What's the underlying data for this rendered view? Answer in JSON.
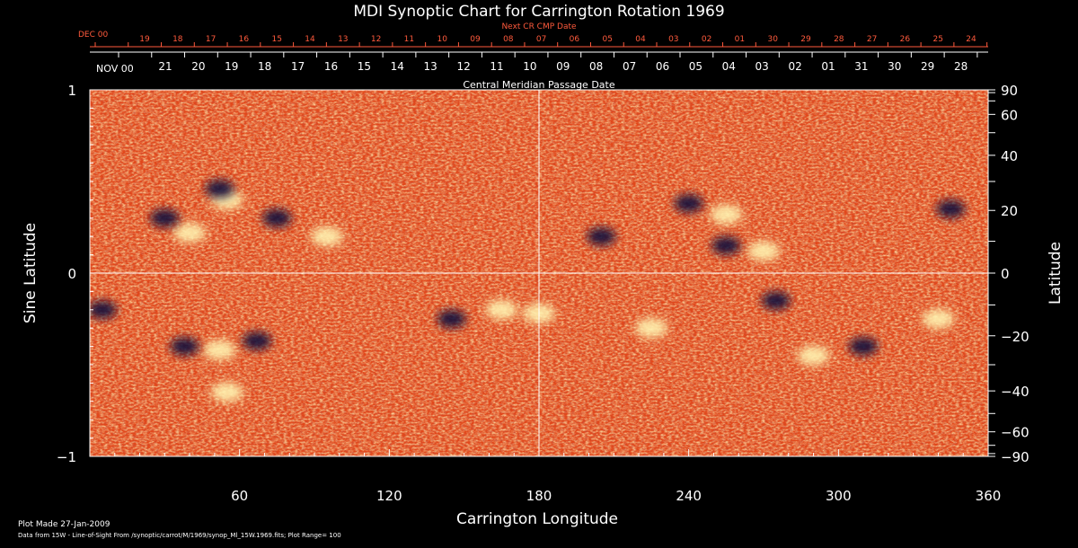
{
  "chart_data": {
    "type": "heatmap",
    "title": "MDI Synoptic Chart for Carrington Rotation 1969",
    "xlabel": "Carrington Longitude",
    "ylabel_left": "Sine Latitude",
    "ylabel_right": "Latitude",
    "xlim": [
      0,
      360
    ],
    "ylim": [
      -1,
      1
    ],
    "x_ticks": [
      "60",
      "120",
      "180",
      "240",
      "300",
      "360"
    ],
    "y_left_ticks": [
      {
        "value": 1,
        "label": "1"
      },
      {
        "value": 0,
        "label": "0"
      },
      {
        "value": -1,
        "label": "−1"
      }
    ],
    "y_right_ticks": [
      {
        "lat": 90,
        "label": "90"
      },
      {
        "lat": 60,
        "label": "60"
      },
      {
        "lat": 40,
        "label": "40"
      },
      {
        "lat": 20,
        "label": "20"
      },
      {
        "lat": 0,
        "label": "0"
      },
      {
        "lat": -20,
        "label": "−20"
      },
      {
        "lat": -40,
        "label": "−40"
      },
      {
        "lat": -60,
        "label": "−60"
      },
      {
        "lat": -90,
        "label": "−90"
      }
    ],
    "top_axis_red": {
      "title": "Next CR CMP Date",
      "month_label": "DEC 00",
      "labels": [
        "19",
        "18",
        "17",
        "16",
        "15",
        "14",
        "13",
        "12",
        "11",
        "10",
        "09",
        "08",
        "07",
        "06",
        "05",
        "04",
        "03",
        "02",
        "01",
        "30",
        "29",
        "28",
        "27",
        "26",
        "25",
        "24"
      ]
    },
    "top_axis_white": {
      "title": "Central Meridian Passage Date",
      "month_label": "NOV 00",
      "labels": [
        "21",
        "20",
        "19",
        "18",
        "17",
        "16",
        "15",
        "14",
        "13",
        "12",
        "11",
        "10",
        "09",
        "08",
        "07",
        "06",
        "05",
        "04",
        "03",
        "02",
        "01",
        "31",
        "30",
        "29",
        "28"
      ]
    },
    "grid_lines": {
      "longitude": 180,
      "sine_latitude": 0
    },
    "plot_range": 100,
    "colors": {
      "background_field": "#e2471a",
      "positive_polarity": "#fff3b0",
      "negative_polarity": "#0d0d3d"
    },
    "positive_regions": [
      {
        "lon": 55,
        "lat": 0.4
      },
      {
        "lon": 40,
        "lat": 0.22
      },
      {
        "lon": 95,
        "lat": 0.2
      },
      {
        "lon": 165,
        "lat": -0.2
      },
      {
        "lon": 52,
        "lat": -0.42
      },
      {
        "lon": 55,
        "lat": -0.65
      },
      {
        "lon": 270,
        "lat": 0.12
      },
      {
        "lon": 255,
        "lat": 0.32
      },
      {
        "lon": 290,
        "lat": -0.45
      },
      {
        "lon": 225,
        "lat": -0.3
      },
      {
        "lon": 340,
        "lat": -0.25
      },
      {
        "lon": 180,
        "lat": -0.22
      }
    ],
    "negative_regions": [
      {
        "lon": 52,
        "lat": 0.46
      },
      {
        "lon": 30,
        "lat": 0.3
      },
      {
        "lon": 75,
        "lat": 0.3
      },
      {
        "lon": 145,
        "lat": -0.25
      },
      {
        "lon": 67,
        "lat": -0.37
      },
      {
        "lon": 38,
        "lat": -0.4
      },
      {
        "lon": 255,
        "lat": 0.15
      },
      {
        "lon": 240,
        "lat": 0.38
      },
      {
        "lon": 205,
        "lat": 0.2
      },
      {
        "lon": 310,
        "lat": -0.4
      },
      {
        "lon": 275,
        "lat": -0.15
      },
      {
        "lon": 345,
        "lat": 0.35
      },
      {
        "lon": 5,
        "lat": -0.2
      }
    ]
  },
  "footer": {
    "plot_made": "Plot Made 27-Jan-2009",
    "data_from": "Data from 15W - Line-of-Sight From /synoptic/carrot/M/1969/synop_Ml_15W.1969.fits; Plot Range=  100"
  }
}
